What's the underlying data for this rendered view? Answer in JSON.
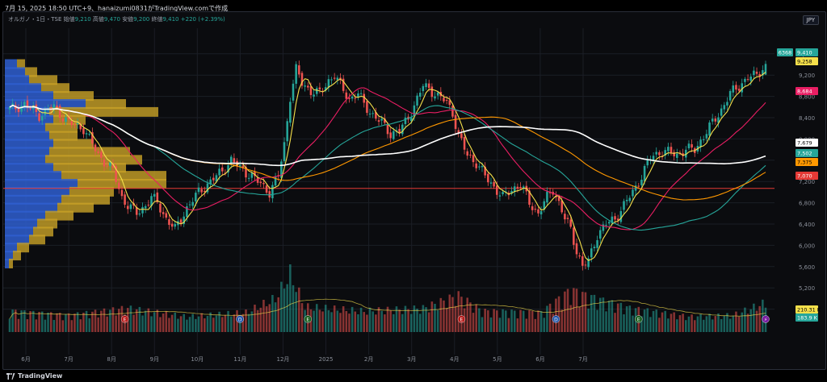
{
  "header": "7月 15, 2025 18:50 UTC+9、hanaizumi0831がTradingView.comで作成",
  "legend": {
    "symbol": "オルガノ・1日・TSE",
    "open_label": "始値",
    "open": "9,210",
    "high_label": "高値",
    "high": "9,470",
    "low_label": "安値",
    "low": "9,200",
    "close_label": "終値",
    "close": "9,410",
    "change": "+220 (+2.39%)"
  },
  "currency_button": "JPY",
  "brand": "TradingView",
  "colors": {
    "up": "#26a69a",
    "down": "#ef5350",
    "bg": "#0b0c0f",
    "vp_blue": "#2f5fd0",
    "vp_gold": "#c9a227"
  },
  "badges": [
    {
      "label": "6368",
      "value": "9,410",
      "bg": "#26a69a",
      "fg": "#fff"
    },
    {
      "value": "9,258",
      "bg": "#f5e04b",
      "fg": "#000"
    },
    {
      "value": "8,684",
      "bg": "#e91e63",
      "fg": "#fff"
    },
    {
      "value": "7,679",
      "bg": "#ffffff",
      "fg": "#000"
    },
    {
      "value": "7,502",
      "bg": "#26a69a",
      "fg": "#fff"
    },
    {
      "value": "7,375",
      "bg": "#ff9800",
      "fg": "#000"
    },
    {
      "value": "7,070",
      "bg": "#e53935",
      "fg": "#fff"
    },
    {
      "value": "210.31 K",
      "bg": "#f5e04b",
      "fg": "#000"
    },
    {
      "value": "183.9 K",
      "bg": "#26a69a",
      "fg": "#fff"
    }
  ],
  "event_markers": [
    {
      "glyph": "E",
      "color": "#b71c1c",
      "date_index": 39
    },
    {
      "glyph": "D",
      "color": "#1e53a8",
      "date_index": 78
    },
    {
      "glyph": "E",
      "color": "#1b5e20",
      "date_index": 101
    },
    {
      "glyph": "E",
      "color": "#b71c1c",
      "date_index": 153
    },
    {
      "glyph": "D",
      "color": "#1e53a8",
      "date_index": 185
    },
    {
      "glyph": "E",
      "color": "#1b5e20",
      "date_index": 213
    },
    {
      "glyph": "⚡",
      "color": "#7b1fa2",
      "date_index": 256
    }
  ],
  "chart_data": {
    "type": "candlestick",
    "title": "",
    "x_tick_labels": [
      "6月",
      "7月",
      "8月",
      "9月",
      "10月",
      "11月",
      "12月",
      "2025",
      "2月",
      "3月",
      "4月",
      "5月",
      "6月",
      "7月"
    ],
    "y_tick_labels": [
      "9,600",
      "9,200",
      "8,800",
      "8,400",
      "8,000",
      "7,600",
      "7,200",
      "6,800",
      "6,400",
      "6,000",
      "5,600",
      "5,200",
      "4,800"
    ],
    "ylim": [
      4400,
      9900
    ],
    "grid": true,
    "horizontal_line": 7070,
    "close_anchors": [
      [
        0,
        8550
      ],
      [
        5,
        8650
      ],
      [
        10,
        8450
      ],
      [
        15,
        8600
      ],
      [
        20,
        8300
      ],
      [
        25,
        8200
      ],
      [
        30,
        7700
      ],
      [
        35,
        7400
      ],
      [
        38,
        6900
      ],
      [
        40,
        6750
      ],
      [
        43,
        6600
      ],
      [
        46,
        6750
      ],
      [
        48,
        6900
      ],
      [
        50,
        6800
      ],
      [
        53,
        6500
      ],
      [
        56,
        6300
      ],
      [
        60,
        6700
      ],
      [
        64,
        7000
      ],
      [
        68,
        7200
      ],
      [
        72,
        7400
      ],
      [
        75,
        7600
      ],
      [
        78,
        7450
      ],
      [
        82,
        7300
      ],
      [
        85,
        7150
      ],
      [
        88,
        7000
      ],
      [
        91,
        7300
      ],
      [
        93,
        7900
      ],
      [
        95,
        8800
      ],
      [
        97,
        9300
      ],
      [
        99,
        9050
      ],
      [
        102,
        8900
      ],
      [
        105,
        8850
      ],
      [
        108,
        9100
      ],
      [
        110,
        9200
      ],
      [
        112,
        9000
      ],
      [
        115,
        8750
      ],
      [
        118,
        8850
      ],
      [
        120,
        8650
      ],
      [
        123,
        8450
      ],
      [
        126,
        8300
      ],
      [
        129,
        8100
      ],
      [
        132,
        8150
      ],
      [
        135,
        8400
      ],
      [
        138,
        8750
      ],
      [
        140,
        9000
      ],
      [
        142,
        8950
      ],
      [
        145,
        8800
      ],
      [
        148,
        8700
      ],
      [
        150,
        8500
      ],
      [
        152,
        8050
      ],
      [
        155,
        7700
      ],
      [
        158,
        7550
      ],
      [
        161,
        7300
      ],
      [
        164,
        7100
      ],
      [
        167,
        6900
      ],
      [
        170,
        7050
      ],
      [
        173,
        7150
      ],
      [
        176,
        6800
      ],
      [
        179,
        6600
      ],
      [
        182,
        6900
      ],
      [
        184,
        7050
      ],
      [
        186,
        6800
      ],
      [
        188,
        6500
      ],
      [
        190,
        6300
      ],
      [
        192,
        5900
      ],
      [
        194,
        5600
      ],
      [
        196,
        5700
      ],
      [
        199,
        6200
      ],
      [
        202,
        6400
      ],
      [
        205,
        6500
      ],
      [
        208,
        6750
      ],
      [
        211,
        7000
      ],
      [
        214,
        7300
      ],
      [
        217,
        7650
      ],
      [
        220,
        7750
      ],
      [
        223,
        7750
      ],
      [
        226,
        7700
      ],
      [
        229,
        7800
      ],
      [
        232,
        7800
      ],
      [
        235,
        8050
      ],
      [
        238,
        8300
      ],
      [
        241,
        8550
      ],
      [
        244,
        8850
      ],
      [
        247,
        9000
      ],
      [
        250,
        9150
      ],
      [
        253,
        9200
      ],
      [
        256,
        9410
      ]
    ],
    "volume_anchors": [
      [
        0,
        150
      ],
      [
        20,
        120
      ],
      [
        40,
        170
      ],
      [
        60,
        110
      ],
      [
        80,
        140
      ],
      [
        90,
        240
      ],
      [
        95,
        420
      ],
      [
        100,
        180
      ],
      [
        120,
        150
      ],
      [
        140,
        170
      ],
      [
        152,
        260
      ],
      [
        160,
        150
      ],
      [
        180,
        140
      ],
      [
        190,
        300
      ],
      [
        195,
        260
      ],
      [
        210,
        170
      ],
      [
        230,
        110
      ],
      [
        245,
        120
      ],
      [
        256,
        210
      ]
    ],
    "series": [
      {
        "name": "",
        "color": "#f5e04b",
        "period": 5,
        "last": "9,258"
      },
      {
        "name": "",
        "color": "#e91e63",
        "period": 25,
        "last": "8,684"
      },
      {
        "name": "",
        "color": "#26a69a",
        "period": 50,
        "last": "7,502"
      },
      {
        "name": "",
        "color": "#ff9800",
        "period": 75,
        "last": "7,375"
      },
      {
        "name": "",
        "color": "#ffffff",
        "period": 100,
        "last": "7,679"
      }
    ],
    "volume_profile": [
      {
        "price": 9400,
        "up": 15,
        "down": 10
      },
      {
        "price": 9250,
        "up": 25,
        "down": 15
      },
      {
        "price": 9100,
        "up": 30,
        "down": 35
      },
      {
        "price": 8950,
        "up": 45,
        "down": 35
      },
      {
        "price": 8800,
        "up": 60,
        "down": 50
      },
      {
        "price": 8650,
        "up": 100,
        "down": 50
      },
      {
        "price": 8500,
        "up": 55,
        "down": 135
      },
      {
        "price": 8350,
        "up": 60,
        "down": 40
      },
      {
        "price": 8200,
        "up": 50,
        "down": 40
      },
      {
        "price": 8050,
        "up": 55,
        "down": 35
      },
      {
        "price": 7900,
        "up": 60,
        "down": 50
      },
      {
        "price": 7750,
        "up": 55,
        "down": 100
      },
      {
        "price": 7600,
        "up": 50,
        "down": 120
      },
      {
        "price": 7450,
        "up": 60,
        "down": 90
      },
      {
        "price": 7300,
        "up": 70,
        "down": 130
      },
      {
        "price": 7150,
        "up": 90,
        "down": 110
      },
      {
        "price": 7000,
        "up": 80,
        "down": 55
      },
      {
        "price": 6850,
        "up": 70,
        "down": 60
      },
      {
        "price": 6700,
        "up": 65,
        "down": 45
      },
      {
        "price": 6550,
        "up": 50,
        "down": 35
      },
      {
        "price": 6400,
        "up": 40,
        "down": 25
      },
      {
        "price": 6250,
        "up": 35,
        "down": 25
      },
      {
        "price": 6100,
        "up": 30,
        "down": 20
      },
      {
        "price": 5950,
        "up": 15,
        "down": 15
      },
      {
        "price": 5800,
        "up": 10,
        "down": 10
      },
      {
        "price": 5650,
        "up": 5,
        "down": 5
      }
    ]
  }
}
